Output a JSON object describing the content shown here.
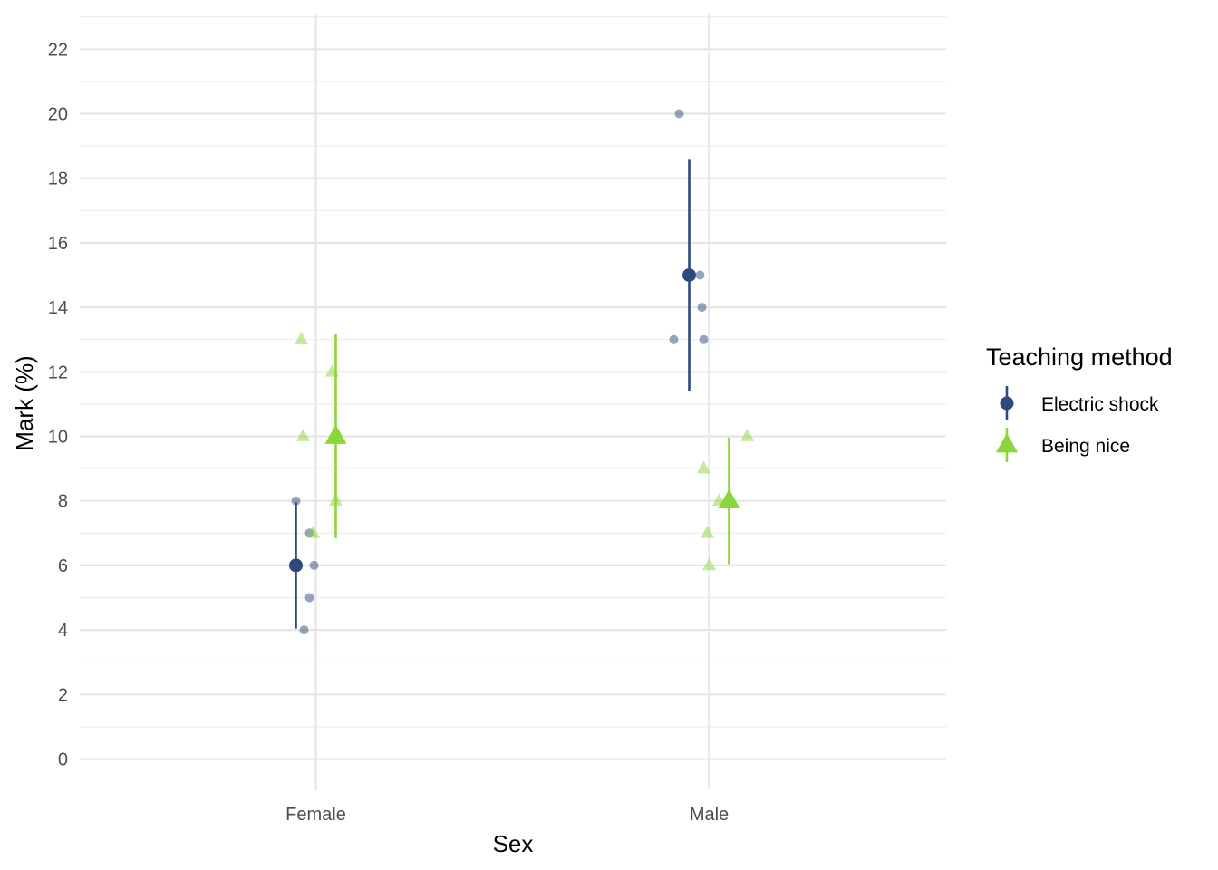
{
  "chart_data": {
    "type": "scatter",
    "xlabel": "Sex",
    "ylabel": "Mark (%)",
    "categories": [
      "Female",
      "Male"
    ],
    "ylim": [
      -1,
      23
    ],
    "yticks": [
      0,
      2,
      4,
      6,
      8,
      10,
      12,
      14,
      16,
      18,
      20,
      22
    ],
    "grid": true,
    "legend": {
      "title": "Teaching method",
      "position": "right"
    },
    "series": [
      {
        "name": "Electric shock",
        "color": "#2e4a7d",
        "shape": "circle",
        "summary": [
          {
            "category": "Female",
            "mean": 6,
            "lower": 4.04,
            "upper": 7.96
          },
          {
            "category": "Male",
            "mean": 15,
            "lower": 11.4,
            "upper": 18.6
          }
        ],
        "points": [
          {
            "category": "Female",
            "values": [
              8,
              7,
              6,
              5,
              4
            ]
          },
          {
            "category": "Male",
            "values": [
              20,
              15,
              14,
              13,
              13
            ]
          }
        ]
      },
      {
        "name": "Being nice",
        "color": "#8bd63a",
        "shape": "triangle",
        "summary": [
          {
            "category": "Female",
            "mean": 10,
            "lower": 6.84,
            "upper": 13.16
          },
          {
            "category": "Male",
            "mean": 8,
            "lower": 6.04,
            "upper": 9.96
          }
        ],
        "points": [
          {
            "category": "Female",
            "values": [
              13,
              12,
              10,
              8,
              7
            ]
          },
          {
            "category": "Male",
            "values": [
              10,
              9,
              8,
              7,
              6
            ]
          }
        ]
      }
    ]
  }
}
